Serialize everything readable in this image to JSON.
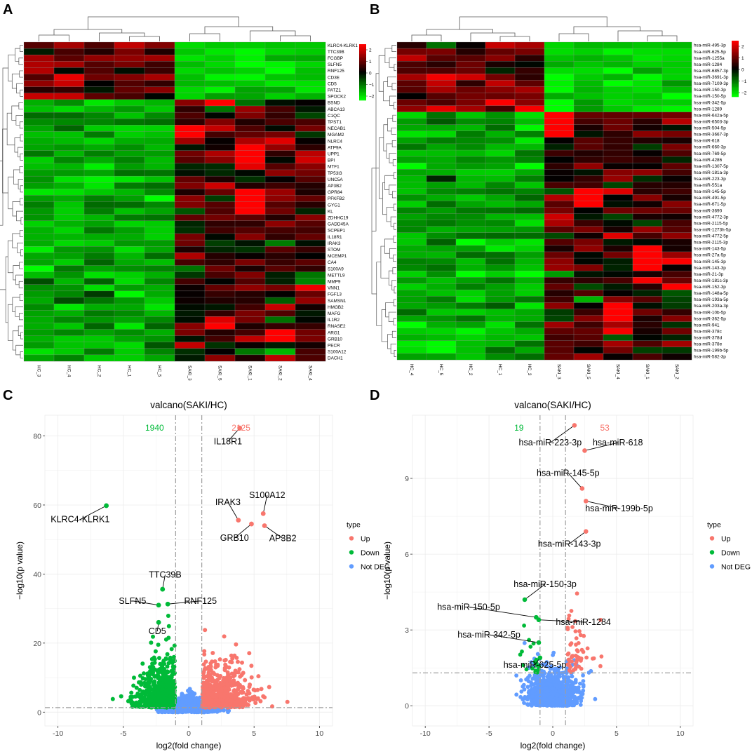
{
  "chart_data": [
    {
      "panel": "A",
      "type": "heatmap",
      "samples": [
        "HC_3",
        "HC_4",
        "HC_2",
        "HC_1",
        "HC_5",
        "SAKI_3",
        "SAKI_5",
        "SAKI_1",
        "SAKI_2",
        "SAKI_4"
      ],
      "rows": [
        "KLRC4-KLRK1",
        "TTC39B",
        "FCGBP",
        "SLFN5",
        "RNF125",
        "CD3E",
        "CD5",
        "PATZ1",
        "SPOCK2",
        "BSND",
        "ABCA13",
        "C1QC",
        "TPST1",
        "NECAB1",
        "MGAM2",
        "NLRC4",
        "ATP9A",
        "UPP1",
        "BPI",
        "MTF1",
        "TP53I3",
        "UNC5A",
        "AP3B2",
        "GPR84",
        "PFKFB2",
        "GYG1",
        "KL",
        "ZDHHC19",
        "GADD45A",
        "SCPEP1",
        "IL18R1",
        "IRAK3",
        "STOM",
        "MCEMP1",
        "CA4",
        "S100A9",
        "METTL9",
        "MMP9",
        "VNN1",
        "FGF13",
        "SAMSN1",
        "HMGB2",
        "MAFG",
        "IL1R2",
        "RNASE2",
        "ARG1",
        "GRB10",
        "PECR",
        "S100A12",
        "DACH1"
      ],
      "upRowCount": 9,
      "colorScale": {
        "low": "#00ff00",
        "mid": "#000000",
        "high": "#ff0000",
        "breaks": [
          "2",
          "1",
          "0",
          "−1",
          "−2"
        ]
      }
    },
    {
      "panel": "B",
      "type": "heatmap",
      "samples": [
        "HC_4",
        "HC_5",
        "HC_2",
        "HC_1",
        "HC_3",
        "SAKI_3",
        "SAKI_5",
        "SAKI_4",
        "SAKI_1",
        "SAKI_2"
      ],
      "rows": [
        "hsa-miR-495-3p",
        "hsa-miR-625-5p",
        "hsa-miR-1255a",
        "hsa-miR-1284",
        "hsa-miR-6857-3p",
        "hsa-miR-3691-3p",
        "hsa-miR-7109-3p",
        "hsa-miR-150-3p",
        "hsa-miR-150-5p",
        "hsa-miR-342-5p",
        "hsa-miR-1289",
        "hsa-miR-642a-5p",
        "hsa-miR-6503-3p",
        "hsa-miR-504-5p",
        "hsa-miR-3667-3p",
        "hsa-miR-618",
        "hsa-miR-660-3p",
        "hsa-miR-769-5p",
        "hsa-miR-4286",
        "hsa-miR-1307-5p",
        "hsa-miR-181a-3p",
        "hsa-miR-223-3p",
        "hsa-miR-551a",
        "hsa-miR-145-5p",
        "hsa-miR-491-5p",
        "hsa-miR-671-5p",
        "hsa-miR-3690",
        "hsa-miR-4772-3p",
        "hsa-miR-2115-5p",
        "hsa-miR-1273h-5p",
        "hsa-miR-4772-5p",
        "hsa-miR-2115-3p",
        "hsa-miR-143-5p",
        "hsa-miR-27a-5p",
        "hsa-miR-145-3p",
        "hsa-miR-143-3p",
        "hsa-miR-21-3p",
        "hsa-miR-181c-3p",
        "hsa-miR-152-3p",
        "hsa-miR-148a-5p",
        "hsa-miR-193a-5p",
        "hsa-miR-203a-3p",
        "hsa-miR-10b-5p",
        "hsa-miR-362-5p",
        "hsa-miR-941",
        "hsa-miR-378c",
        "hsa-miR-378d",
        "hsa-miR-378e",
        "hsa-miR-199b-5p",
        "hsa-miR-582-3p"
      ],
      "upRowCount": 11,
      "colorScale": {
        "low": "#00ff00",
        "mid": "#000000",
        "high": "#ff0000",
        "breaks": [
          "2",
          "1",
          "0",
          "−1",
          "−2"
        ]
      }
    },
    {
      "panel": "C",
      "type": "scatter",
      "title": "valcano(SAKI/HC)",
      "xlabel": "log2(fold change)",
      "ylabel": "−log10(p value)",
      "xlim": [
        -11,
        11
      ],
      "ylim": [
        -4,
        86
      ],
      "xticks": [
        -10,
        -5,
        0,
        5,
        10
      ],
      "yticks": [
        0,
        20,
        40,
        60,
        80
      ],
      "fcThreshold": 1,
      "pThresholdLine": 1.3,
      "downCount": "1940",
      "upCount": "2125",
      "points": [
        {
          "gene": "IL18R1",
          "x": 3.9,
          "y": 82.3,
          "type": "Up",
          "label": [
            3.0,
            77.6
          ]
        },
        {
          "gene": "KLRC4-KLRK1",
          "x": -6.3,
          "y": 59.8,
          "type": "Down",
          "label": [
            -8.3,
            55.0
          ]
        },
        {
          "gene": "IRAK3",
          "x": 3.8,
          "y": 55.6,
          "type": "Up",
          "label": [
            3.0,
            60.0
          ]
        },
        {
          "gene": "S100A12",
          "x": 5.7,
          "y": 57.5,
          "type": "Up",
          "label": [
            6.0,
            62.0
          ]
        },
        {
          "gene": "GRB10",
          "x": 4.8,
          "y": 54.5,
          "type": "Up",
          "label": [
            3.5,
            49.6
          ]
        },
        {
          "gene": "AP3B2",
          "x": 5.8,
          "y": 54.0,
          "type": "Up",
          "label": [
            7.2,
            49.5
          ]
        },
        {
          "gene": "TTC39B",
          "x": -2.0,
          "y": 35.6,
          "type": "Down",
          "label": [
            -1.8,
            39.0
          ]
        },
        {
          "gene": "SLFN5",
          "x": -2.3,
          "y": 31.0,
          "type": "Down",
          "label": [
            -4.3,
            31.4
          ]
        },
        {
          "gene": "RNF125",
          "x": -1.6,
          "y": 31.3,
          "type": "Down",
          "label": [
            0.9,
            31.4
          ]
        },
        {
          "gene": "CD5",
          "x": -2.3,
          "y": 26.0,
          "type": "Down",
          "label": [
            -2.4,
            22.6
          ]
        }
      ],
      "legend": {
        "title": "type",
        "items": [
          {
            "label": "Up",
            "color": "#f8766d"
          },
          {
            "label": "Down",
            "color": "#00ba38"
          },
          {
            "label": "Not DEG",
            "color": "#619cff"
          }
        ]
      }
    },
    {
      "panel": "D",
      "type": "scatter",
      "title": "valcano(SAKI/HC)",
      "xlabel": "log2(fold change)",
      "ylabel": "−log10(p value)",
      "xlim": [
        -11,
        11
      ],
      "ylim": [
        -0.8,
        11.5
      ],
      "xticks": [
        -10,
        -5,
        0,
        5,
        10
      ],
      "yticks": [
        0,
        3,
        6,
        9
      ],
      "fcThreshold": 1,
      "pThresholdLine": 1.3,
      "downCount": "19",
      "upCount": "53",
      "points": [
        {
          "gene": "hsa-miR-223-3p",
          "x": 1.7,
          "y": 11.1,
          "type": "Up",
          "label": [
            -0.2,
            10.3
          ]
        },
        {
          "gene": "hsa-miR-618",
          "x": 2.5,
          "y": 10.1,
          "type": "Up",
          "label": [
            5.1,
            10.3
          ]
        },
        {
          "gene": "hsa-miR-145-5p",
          "x": 2.3,
          "y": 8.6,
          "type": "Up",
          "label": [
            1.2,
            9.1
          ]
        },
        {
          "gene": "hsa-miR-199b-5p",
          "x": 2.6,
          "y": 8.1,
          "type": "Up",
          "label": [
            5.2,
            7.7
          ]
        },
        {
          "gene": "hsa-miR-143-3p",
          "x": 2.6,
          "y": 6.9,
          "type": "Up",
          "label": [
            1.3,
            6.3
          ]
        },
        {
          "gene": "hsa-miR-150-3p",
          "x": -2.2,
          "y": 4.2,
          "type": "Down",
          "label": [
            -0.6,
            4.7
          ]
        },
        {
          "gene": "hsa-miR-150-5p",
          "x": -1.3,
          "y": 3.5,
          "type": "Down",
          "label": [
            -6.6,
            3.8
          ]
        },
        {
          "gene": "hsa-miR-1284",
          "x": -1.1,
          "y": 3.4,
          "type": "Down",
          "label": [
            2.4,
            3.2
          ]
        },
        {
          "gene": "hsa-miR-342-5p",
          "x": -1.1,
          "y": 2.5,
          "type": "Down",
          "label": [
            -5.0,
            2.7
          ]
        },
        {
          "gene": "hsa-miR-625-5p",
          "x": -1.0,
          "y": 1.9,
          "type": "Down",
          "label": [
            -1.4,
            1.5
          ]
        }
      ],
      "legend": {
        "title": "type",
        "items": [
          {
            "label": "Up",
            "color": "#f8766d"
          },
          {
            "label": "Down",
            "color": "#00ba38"
          },
          {
            "label": "Not DEG",
            "color": "#619cff"
          }
        ]
      }
    }
  ],
  "panels": {
    "a": "A",
    "b": "B",
    "c": "C",
    "d": "D"
  }
}
